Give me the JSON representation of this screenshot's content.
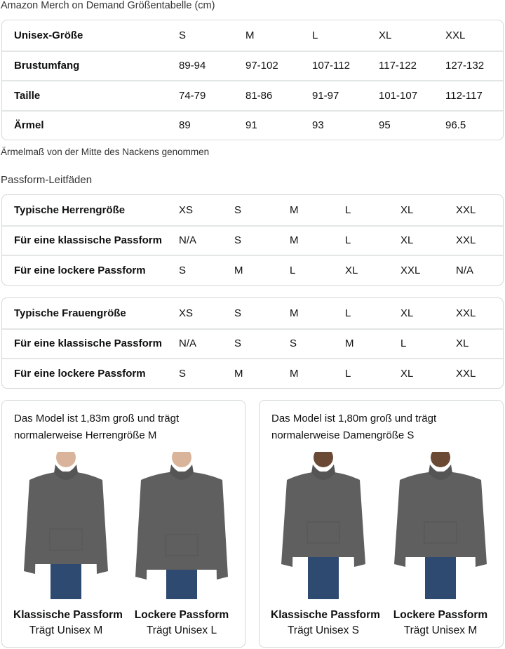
{
  "title": "Amazon Merch on Demand Größentabelle (cm)",
  "size_table": {
    "rows": [
      {
        "label": "Unisex-Größe",
        "values": [
          "S",
          "M",
          "L",
          "XL",
          "XXL"
        ]
      },
      {
        "label": "Brustumfang",
        "values": [
          "89-94",
          "97-102",
          "107-112",
          "117-122",
          "127-132"
        ]
      },
      {
        "label": "Taille",
        "values": [
          "74-79",
          "81-86",
          "91-97",
          "101-107",
          "112-117"
        ]
      },
      {
        "label": "Ärmel",
        "values": [
          "89",
          "91",
          "93",
          "95",
          "96.5"
        ]
      }
    ]
  },
  "note": "Ärmelmaß von der Mitte des Nackens genommen",
  "fit_title": "Passform-Leitfäden",
  "men_table": {
    "rows": [
      {
        "label": "Typische Herrengröße",
        "values": [
          "XS",
          "S",
          "M",
          "L",
          "XL",
          "XXL"
        ]
      },
      {
        "label": "Für eine klassische Passform",
        "values": [
          "N/A",
          "S",
          "M",
          "L",
          "XL",
          "XXL"
        ]
      },
      {
        "label": "Für eine lockere Passform",
        "values": [
          "S",
          "M",
          "L",
          "XL",
          "XXL",
          "N/A"
        ]
      }
    ]
  },
  "women_table": {
    "rows": [
      {
        "label": "Typische Frauengröße",
        "values": [
          "XS",
          "S",
          "M",
          "L",
          "XL",
          "XXL"
        ]
      },
      {
        "label": "Für eine klassische Passform",
        "values": [
          "N/A",
          "S",
          "S",
          "M",
          "L",
          "XL"
        ]
      },
      {
        "label": "Für eine lockere Passform",
        "values": [
          "S",
          "M",
          "M",
          "L",
          "XL",
          "XXL"
        ]
      }
    ]
  },
  "cards": [
    {
      "desc1": "Das Model ist 1,83m groß und trägt",
      "desc2": "normalerweise Herrengröße M",
      "figs": [
        {
          "name": "Klassische Passform",
          "sub": "Trägt Unisex M"
        },
        {
          "name": "Lockere Passform",
          "sub": "Trägt Unisex L"
        }
      ]
    },
    {
      "desc1": "Das Model ist 1,80m groß und trägt",
      "desc2": "normalerweise Damengröße S",
      "figs": [
        {
          "name": "Klassische Passform",
          "sub": "Trägt Unisex S"
        },
        {
          "name": "Lockere Passform",
          "sub": "Trägt Unisex M"
        }
      ]
    }
  ],
  "colors": {
    "hoodie": "#5f5f5f",
    "jeans": "#2f4a70",
    "border": "#d5d9d9"
  }
}
